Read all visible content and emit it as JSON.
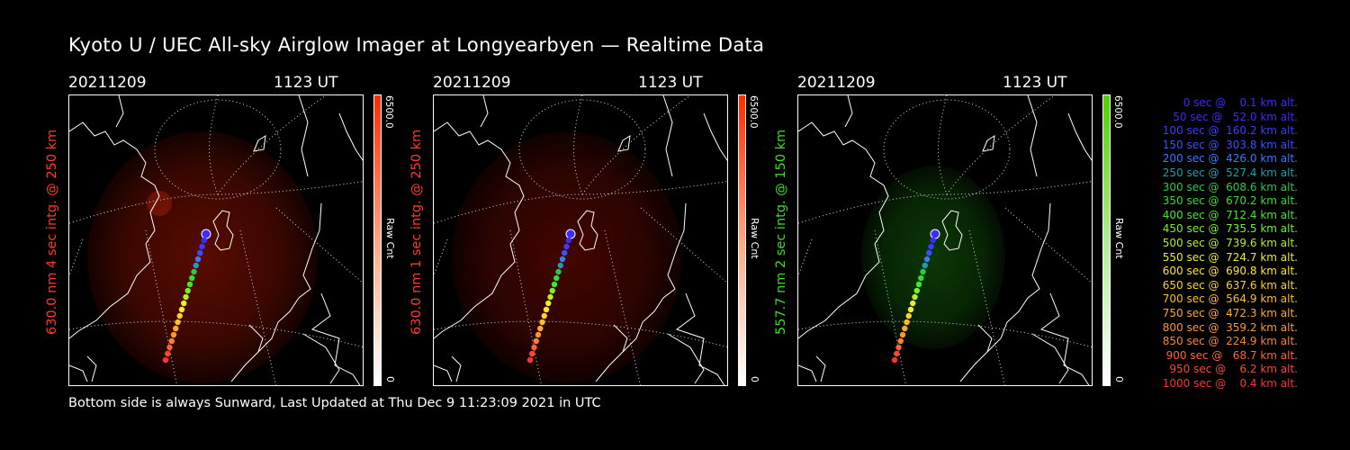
{
  "title": "Kyoto U / UEC All-sky Airglow Imager at Longyearbyen — Realtime Data",
  "footer": "Bottom side is always Sunward, Last Updated at Thu Dec  9 11:23:09 2021 in UTC",
  "panels": [
    {
      "date": "20211209",
      "time": "1123 UT",
      "ylabel": "630.0 nm 4 sec intg. @ 250 km",
      "ylabel_color": "#ff3a2a",
      "colorbar_max": "6500.0",
      "colorbar_min": "0",
      "colorbar_unit": "Raw Cnt",
      "glow_color": "#ff2000",
      "colorbar_top": "#ff2a00"
    },
    {
      "date": "20211209",
      "time": "1123 UT",
      "ylabel": "630.0 nm 1 sec intg. @ 250 km",
      "ylabel_color": "#ff3a2a",
      "colorbar_max": "6500.0",
      "colorbar_min": "0",
      "colorbar_unit": "Raw Cnt",
      "glow_color": "#c01000",
      "colorbar_top": "#ff2a00"
    },
    {
      "date": "20211209",
      "time": "1123 UT",
      "ylabel": "557.7 nm 2 sec intg. @ 150 km",
      "ylabel_color": "#3cdc28",
      "colorbar_max": "6500.0",
      "colorbar_min": "0",
      "colorbar_unit": "Raw Cnt",
      "glow_color": "#20a010",
      "colorbar_top": "#50d000"
    }
  ],
  "legend": [
    {
      "text": "0 sec @    0.1 km alt.",
      "color": "#3a2cff"
    },
    {
      "text": "50 sec @   52.0 km alt.",
      "color": "#3a2cff"
    },
    {
      "text": "100 sec @  160.2 km alt.",
      "color": "#3a3cff"
    },
    {
      "text": "150 sec @  303.8 km alt.",
      "color": "#3a50ff"
    },
    {
      "text": "200 sec @  426.0 km alt.",
      "color": "#3a78ff"
    },
    {
      "text": "250 sec @  527.4 km alt.",
      "color": "#1e9eb4"
    },
    {
      "text": "300 sec @  608.6 km alt.",
      "color": "#28c850"
    },
    {
      "text": "350 sec @  670.2 km alt.",
      "color": "#32dc32"
    },
    {
      "text": "400 sec @  712.4 km alt.",
      "color": "#46e628"
    },
    {
      "text": "450 sec @  735.5 km alt.",
      "color": "#78f028"
    },
    {
      "text": "500 sec @  739.6 km alt.",
      "color": "#b4f028"
    },
    {
      "text": "550 sec @  724.7 km alt.",
      "color": "#e6f028"
    },
    {
      "text": "600 sec @  690.8 km alt.",
      "color": "#ffe628"
    },
    {
      "text": "650 sec @  637.6 km alt.",
      "color": "#ffd228"
    },
    {
      "text": "700 sec @  564.9 km alt.",
      "color": "#ffbe28"
    },
    {
      "text": "750 sec @  472.3 km alt.",
      "color": "#ffaa28"
    },
    {
      "text": "800 sec @  359.2 km alt.",
      "color": "#ff962d"
    },
    {
      "text": "850 sec @  224.9 km alt.",
      "color": "#ff822d"
    },
    {
      "text": "900 sec @   68.7 km alt.",
      "color": "#ff6432"
    },
    {
      "text": "950 sec @    6.2 km alt.",
      "color": "#ff4632"
    },
    {
      "text": "1000 sec @    0.4 km alt.",
      "color": "#ff3232"
    }
  ]
}
